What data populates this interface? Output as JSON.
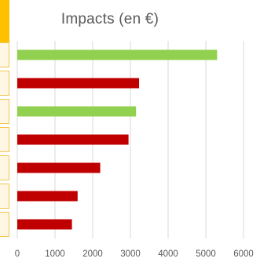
{
  "colors": {
    "positive": "#92d050",
    "negative": "#c00000",
    "gridline": "#d9d9d9",
    "sidebar_accent": "#ffc000",
    "sidebar_cell_bg": "#fff7e4"
  },
  "chart_data": {
    "type": "bar",
    "orientation": "horizontal",
    "title": "Impacts (en €)",
    "xlabel": "",
    "ylabel": "",
    "xlim": [
      0,
      6000
    ],
    "x_ticks": [
      0,
      1000,
      2000,
      3000,
      4000,
      5000,
      6000
    ],
    "grid": true,
    "legend": "none",
    "categories": [
      "",
      "",
      "",
      "",
      "",
      "",
      ""
    ],
    "values": [
      5300,
      3230,
      3150,
      2950,
      2200,
      1600,
      1450
    ],
    "bar_colors": [
      "positive",
      "negative",
      "positive",
      "negative",
      "negative",
      "negative",
      "negative"
    ]
  }
}
